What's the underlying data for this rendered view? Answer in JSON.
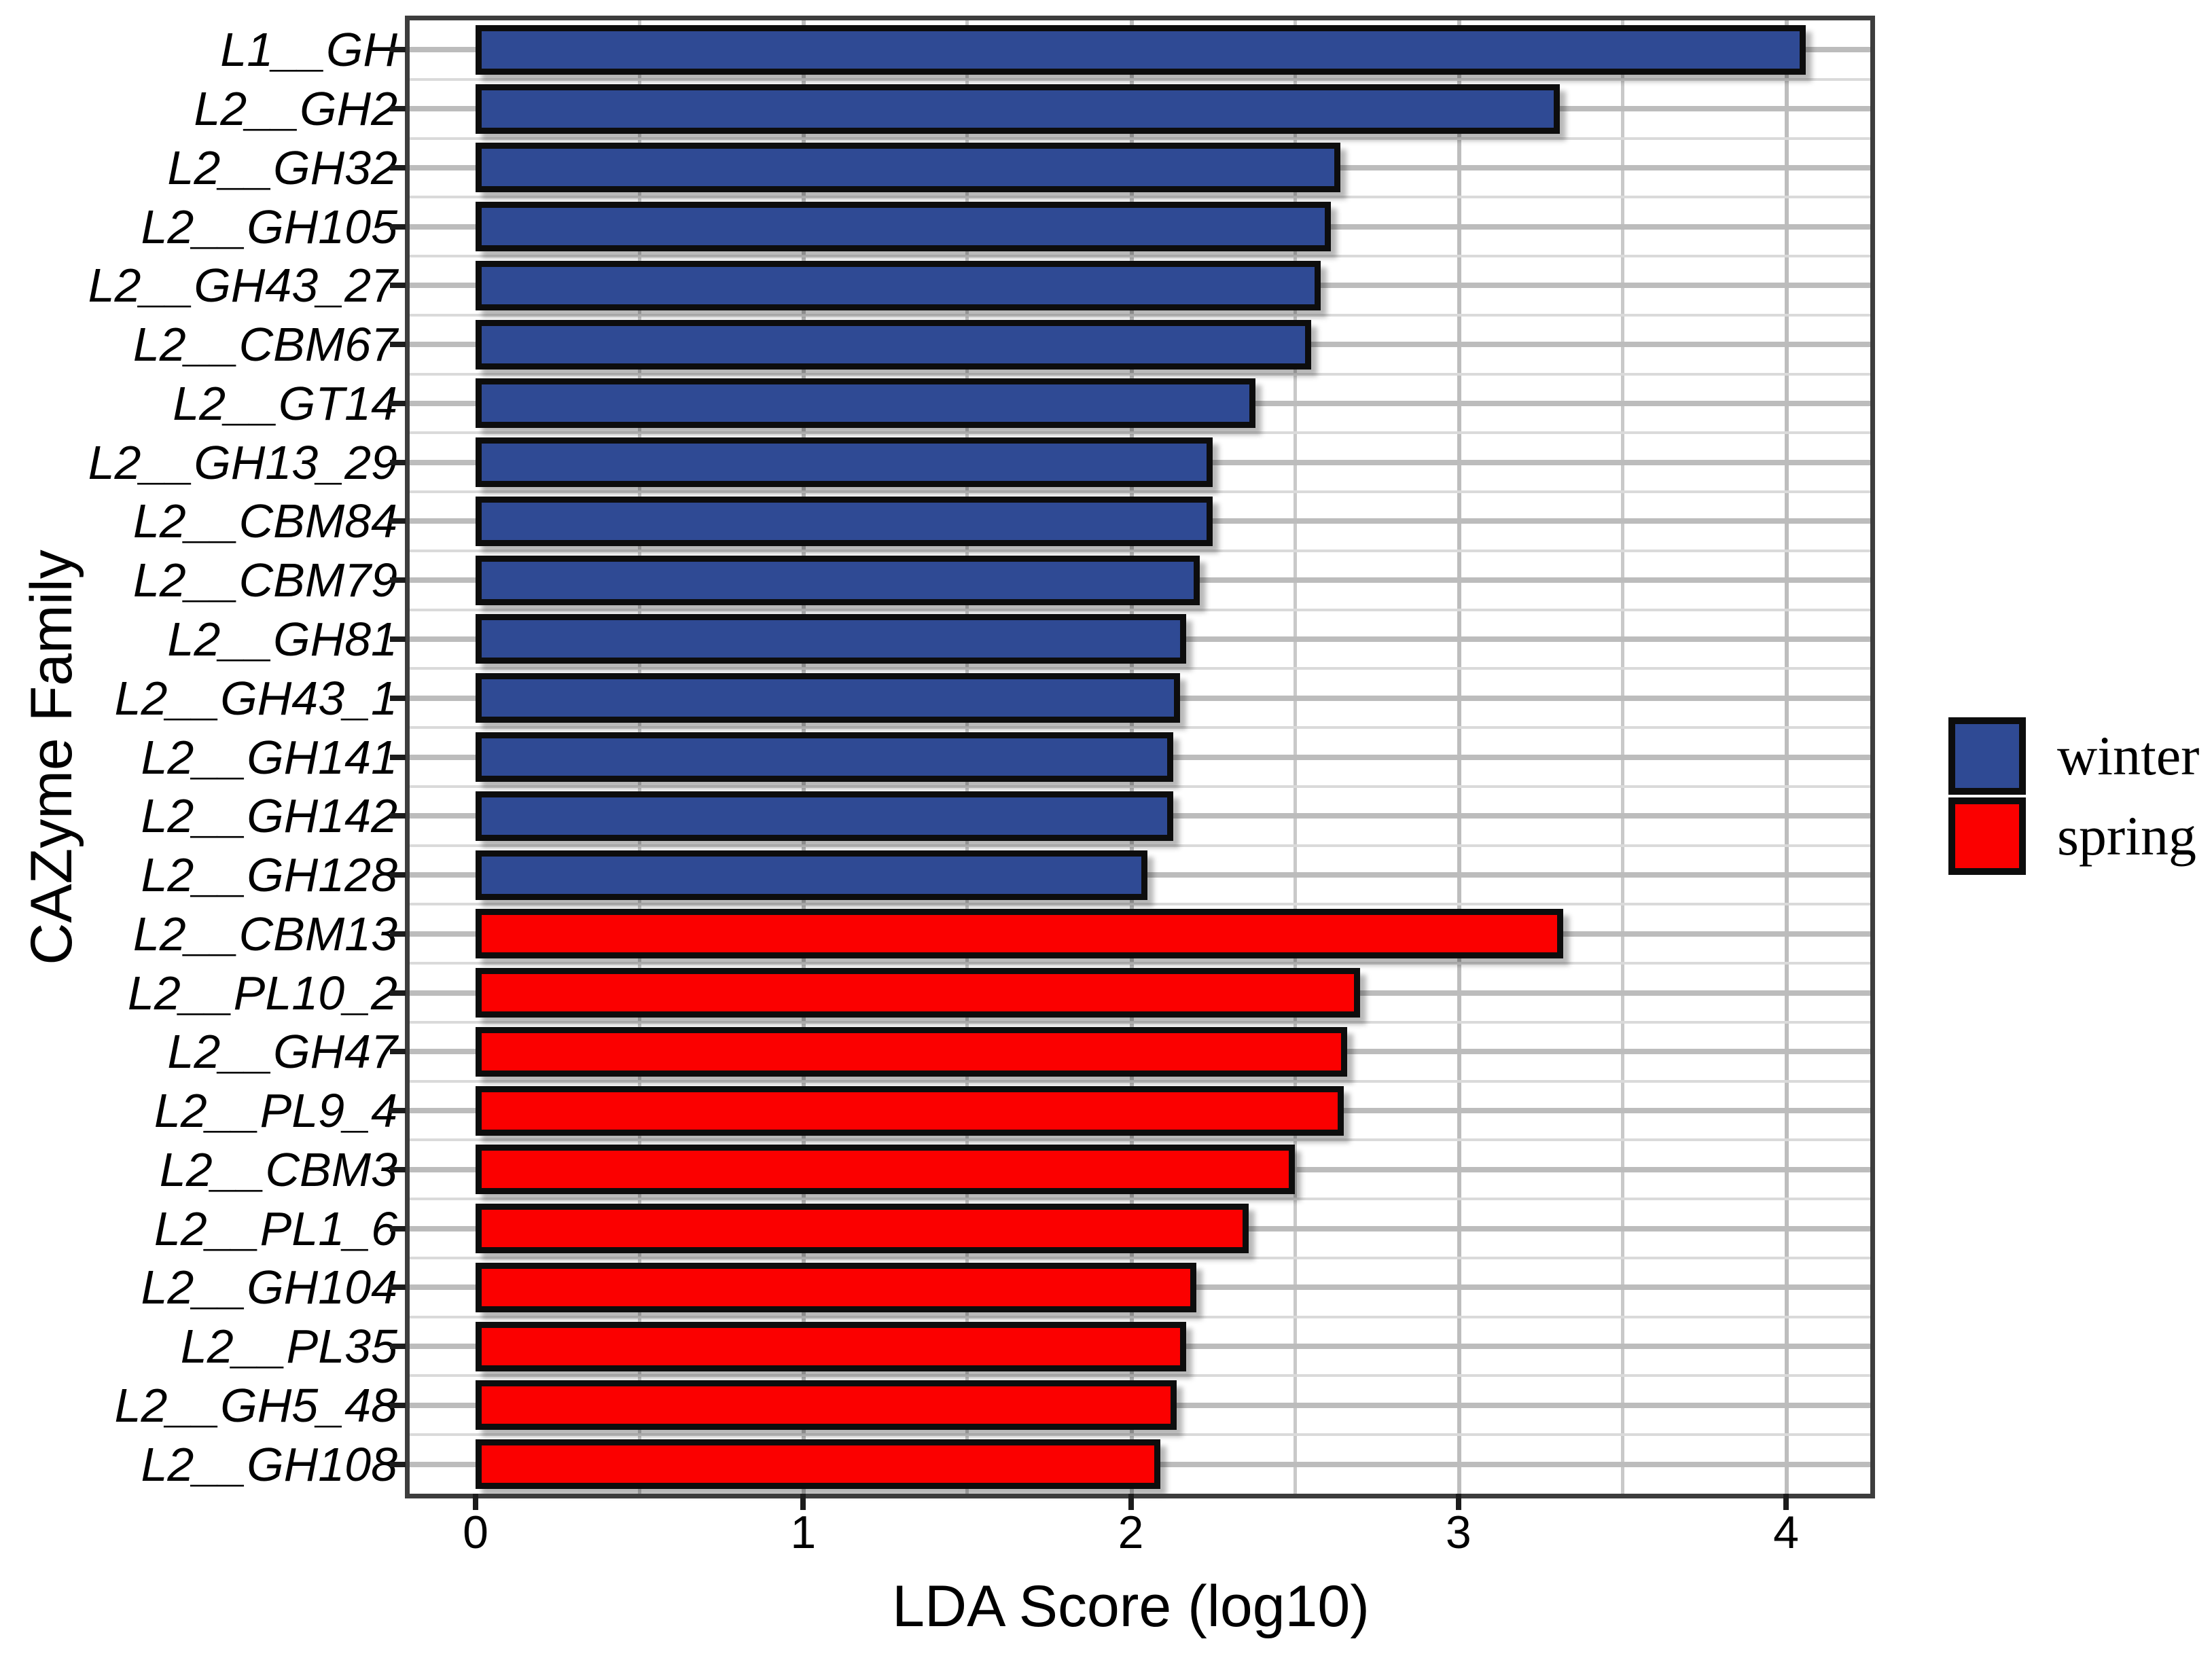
{
  "chart_data": {
    "type": "bar",
    "orientation": "horizontal",
    "title": "",
    "xlabel": "LDA Score (log10)",
    "ylabel": "CAZyme Family",
    "xlim": [
      0,
      4.26
    ],
    "x_ticks": [
      0,
      1,
      2,
      3,
      4
    ],
    "grid": "vertical minor every 0.5, horizontal major at category centers + minor between rows",
    "legend_position": "right",
    "categories": [
      "L1__GH",
      "L2__GH2",
      "L2__GH32",
      "L2__GH105",
      "L2__GH43_27",
      "L2__CBM67",
      "L2__GT14",
      "L2__GH13_29",
      "L2__CBM84",
      "L2__CBM79",
      "L2__GH81",
      "L2__GH43_1",
      "L2__GH141",
      "L2__GH142",
      "L2__GH128",
      "L2__CBM13",
      "L2__PL10_2",
      "L2__GH47",
      "L2__PL9_4",
      "L2__CBM3",
      "L2__PL1_6",
      "L2__GH104",
      "L2__PL35",
      "L2__GH5_48",
      "L2__GH108"
    ],
    "values": [
      4.06,
      3.31,
      2.64,
      2.61,
      2.58,
      2.55,
      2.38,
      2.25,
      2.25,
      2.21,
      2.17,
      2.15,
      2.13,
      2.13,
      2.05,
      3.32,
      2.7,
      2.66,
      2.65,
      2.5,
      2.36,
      2.2,
      2.17,
      2.14,
      2.09
    ],
    "groups": [
      "winter",
      "winter",
      "winter",
      "winter",
      "winter",
      "winter",
      "winter",
      "winter",
      "winter",
      "winter",
      "winter",
      "winter",
      "winter",
      "winter",
      "winter",
      "spring",
      "spring",
      "spring",
      "spring",
      "spring",
      "spring",
      "spring",
      "spring",
      "spring",
      "spring"
    ],
    "legend": {
      "entries": [
        {
          "label": "winter",
          "color": "#2f4a94"
        },
        {
          "label": "spring",
          "color": "#fb0000"
        }
      ]
    },
    "colors": {
      "winter_bar": "#2f4a94",
      "spring_bar": "#fb0000",
      "bar_border": "#0d0d0d",
      "panel_border": "#3d3d3d",
      "grid_major": "#bcbcbc",
      "grid_minor": "#dadada"
    }
  }
}
